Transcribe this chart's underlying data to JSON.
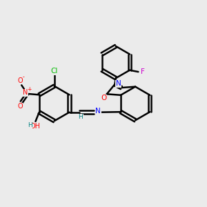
{
  "background_color": "#ebebeb",
  "bond_color": "#000000",
  "atom_colors": {
    "Cl": "#00bb00",
    "N": "#0000ff",
    "O": "#ff0000",
    "F": "#cc00cc",
    "H": "#008080",
    "C": "#000000"
  },
  "figsize": [
    3.0,
    3.0
  ],
  "dpi": 100
}
